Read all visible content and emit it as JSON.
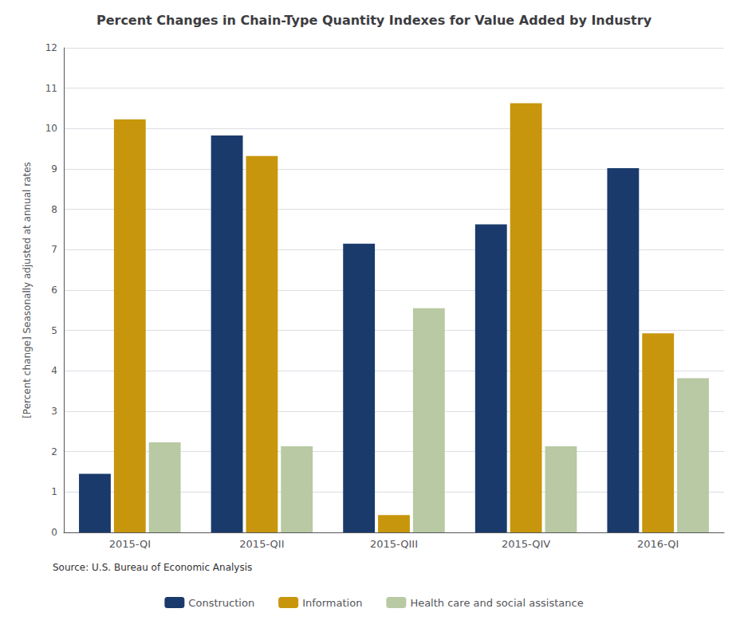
{
  "chart_data": {
    "type": "bar",
    "title": "Percent Changes in Chain-Type Quantity Indexes for Value Added by Industry",
    "ylabel": "[Percent change] Seasonally adjusted at annual rates",
    "annotations": [
      "Source: U.S. Bureau of Economic Analysis"
    ],
    "categories": [
      "2015-QI",
      "2015-QII",
      "2015-QIII",
      "2015-QIV",
      "2016-QI"
    ],
    "series": [
      {
        "name": "Construction",
        "color": "#1a3a6b",
        "values": [
          1.45,
          9.83,
          7.15,
          7.63,
          9.02
        ]
      },
      {
        "name": "Information",
        "color": "#c8960c",
        "values": [
          10.23,
          9.32,
          0.43,
          10.63,
          4.93
        ]
      },
      {
        "name": "Health care and social assistance",
        "color": "#b8c9a3",
        "values": [
          2.23,
          2.13,
          5.55,
          2.13,
          3.82
        ]
      }
    ],
    "ylim": [
      0,
      12
    ],
    "yticks": [
      0,
      1,
      2,
      3,
      4,
      5,
      6,
      7,
      8,
      9,
      10,
      11,
      12
    ],
    "grid": true,
    "legend": "bottom"
  }
}
